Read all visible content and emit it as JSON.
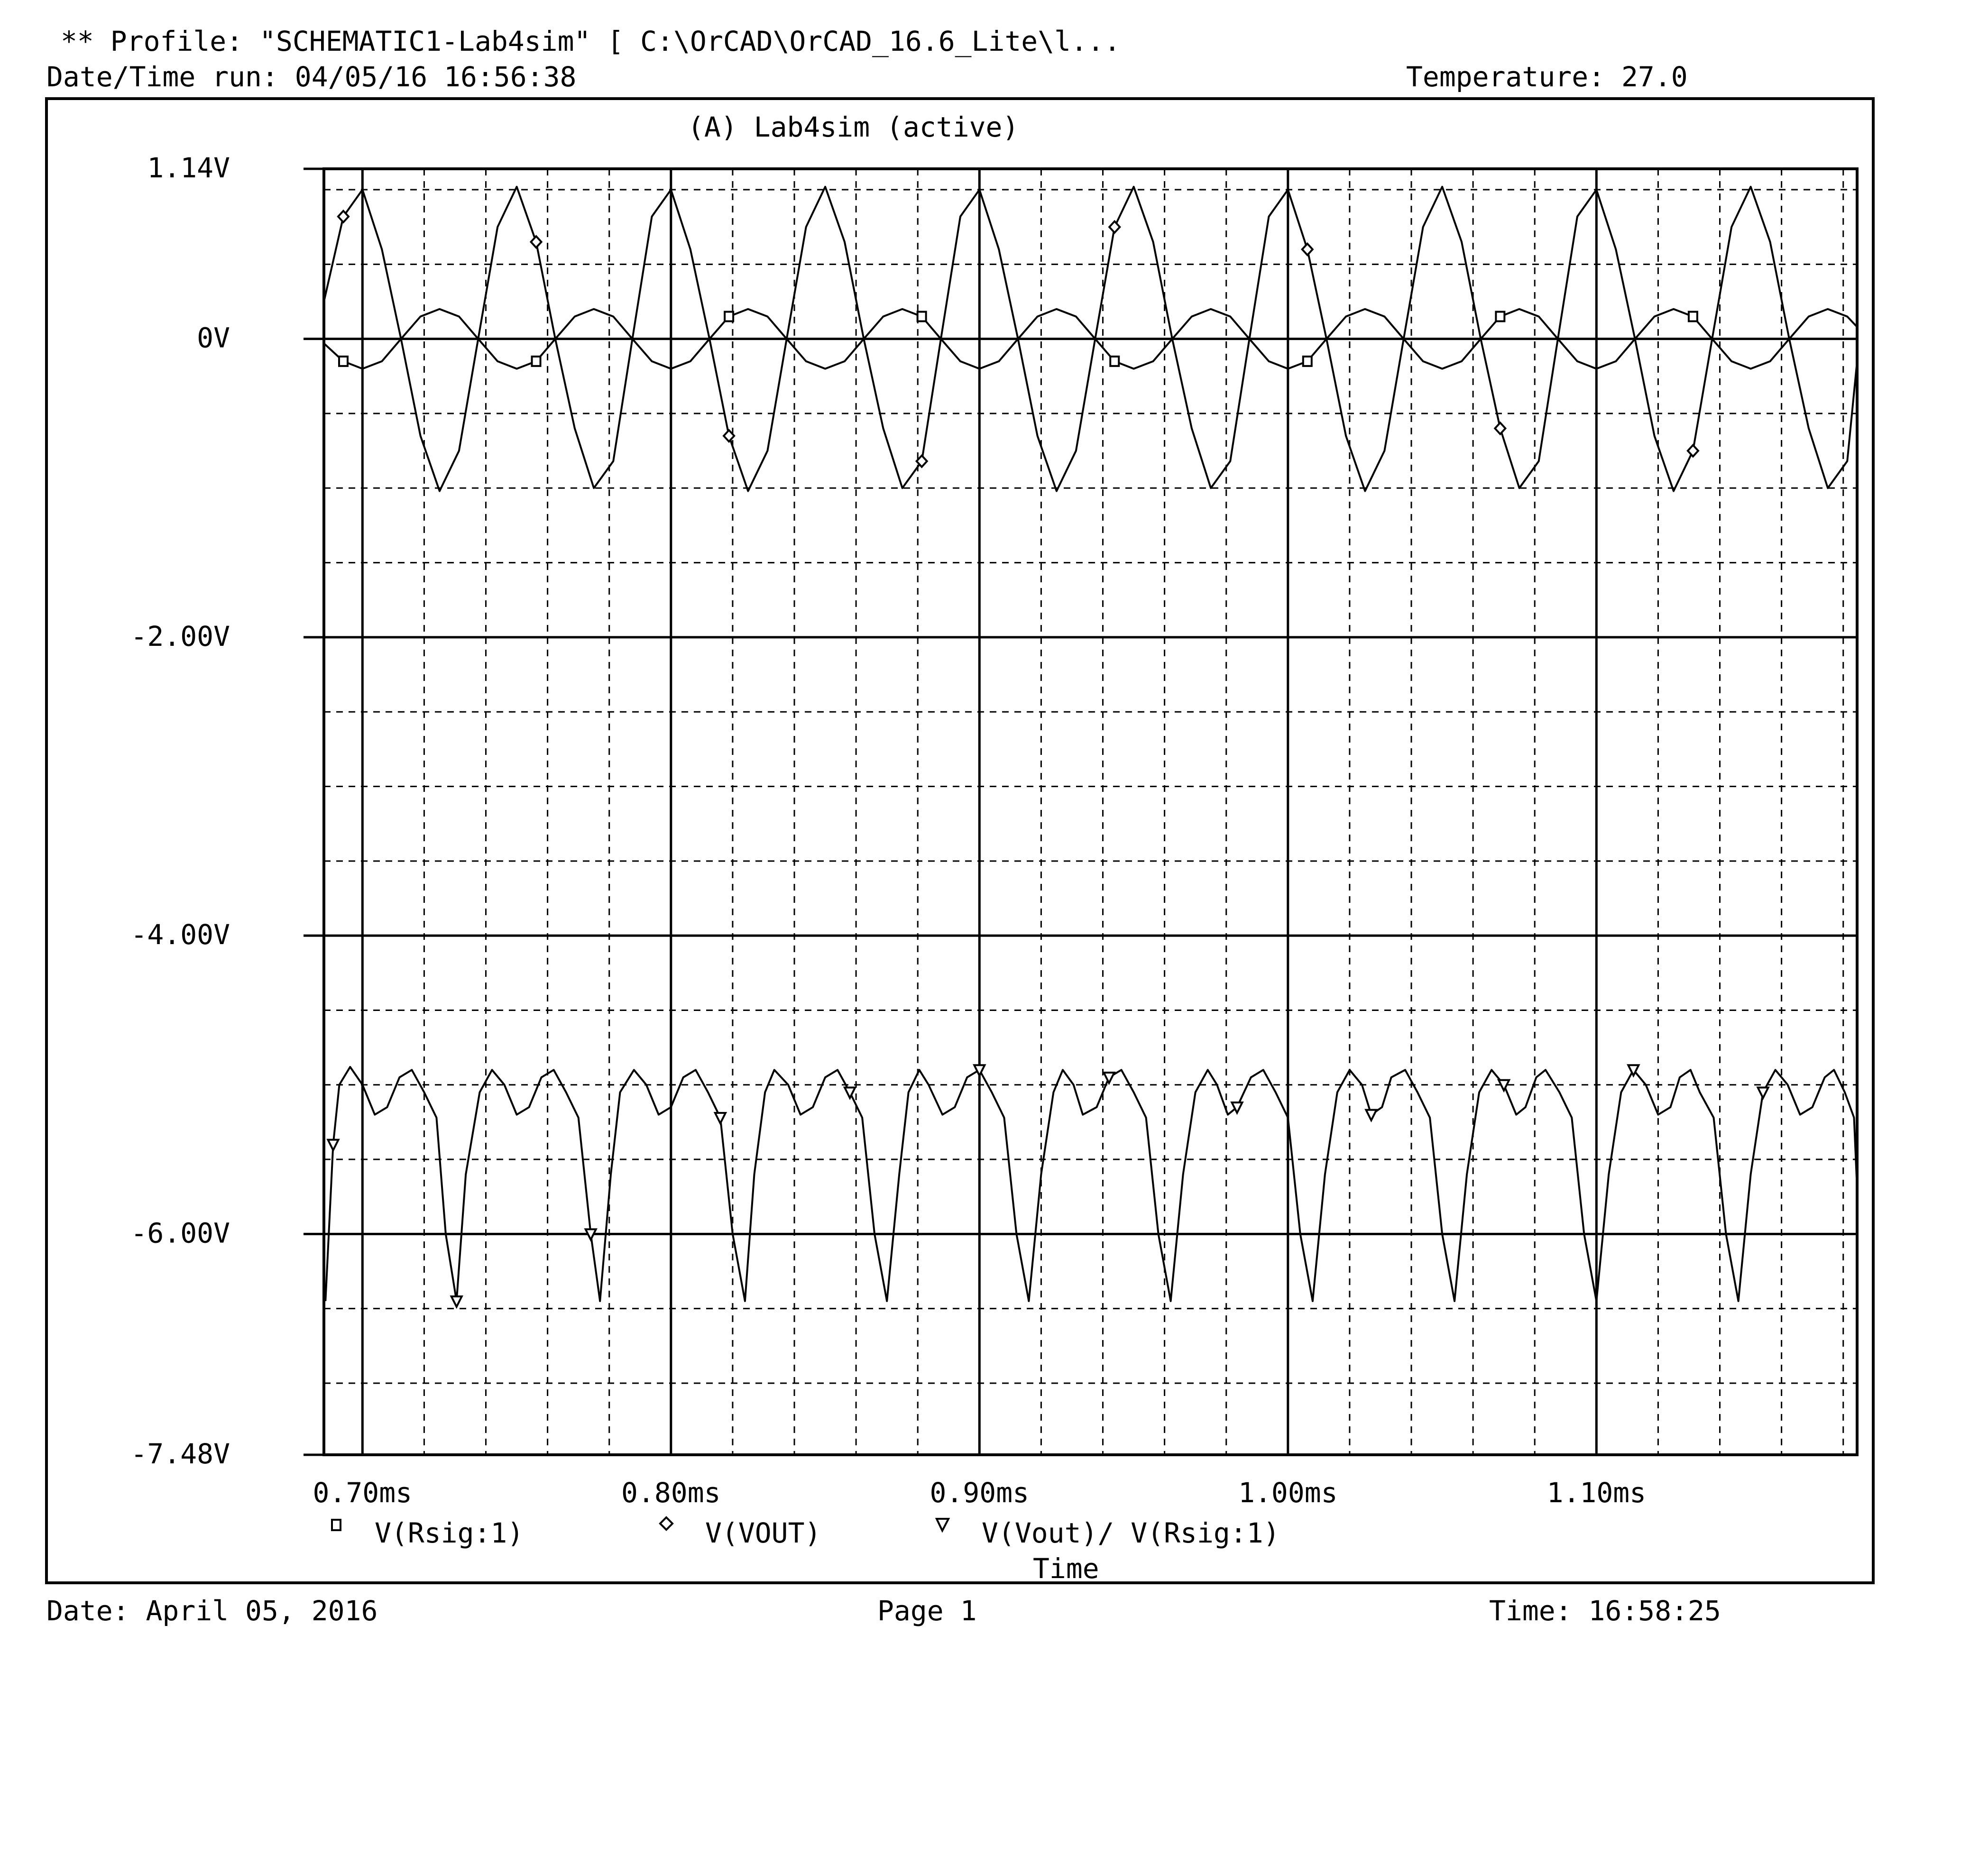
{
  "header": {
    "profile": "** Profile: \"SCHEMATIC1-Lab4sim\"  [ C:\\OrCAD\\OrCAD_16.6_Lite\\l...",
    "datetime_run": "Date/Time run: 04/05/16 16:56:38",
    "temperature": "Temperature: 27.0"
  },
  "footer": {
    "date": "Date: April 05, 2016",
    "page": "Page 1",
    "time": "Time: 16:58:25"
  },
  "chart_data": {
    "type": "line",
    "title": "(A) Lab4sim (active)",
    "xlabel": "Time",
    "ylabel": "",
    "x_unit": "ms",
    "xlim": [
      0.6875,
      1.1845
    ],
    "ylim": [
      -7.48,
      1.14
    ],
    "grid": true,
    "legend_position": "bottom",
    "x_ticks": [
      {
        "value": 0.7,
        "label": "0.70ms"
      },
      {
        "value": 0.8,
        "label": "0.80ms"
      },
      {
        "value": 0.9,
        "label": "0.90ms"
      },
      {
        "value": 1.0,
        "label": "1.00ms"
      },
      {
        "value": 1.1,
        "label": "1.10ms"
      }
    ],
    "y_ticks": [
      {
        "value": 1.14,
        "label": "1.14V"
      },
      {
        "value": 0,
        "label": "0V"
      },
      {
        "value": -2.0,
        "label": "-2.00V"
      },
      {
        "value": -4.0,
        "label": "-4.00V"
      },
      {
        "value": -6.0,
        "label": "-6.00V"
      },
      {
        "value": -7.48,
        "label": "-7.48V"
      }
    ],
    "series": [
      {
        "name": "V(Rsig:1)",
        "marker": "square",
        "color": "#000000",
        "x": [
          0.6875,
          0.6938,
          0.7,
          0.7063,
          0.7125,
          0.7188,
          0.725,
          0.7313,
          0.7375,
          0.7438,
          0.75,
          0.7563,
          0.7625,
          0.7688,
          0.775,
          0.7813,
          0.7875,
          0.7938,
          0.8,
          0.8063,
          0.8125,
          0.8188,
          0.825,
          0.8313,
          0.8375,
          0.8438,
          0.85,
          0.8563,
          0.8625,
          0.8688,
          0.875,
          0.8813,
          0.8875,
          0.8938,
          0.9,
          0.9063,
          0.9125,
          0.9188,
          0.925,
          0.9313,
          0.9375,
          0.9438,
          0.95,
          0.9563,
          0.9625,
          0.9688,
          0.975,
          0.9813,
          0.9875,
          0.9938,
          1.0,
          1.0063,
          1.0125,
          1.0188,
          1.025,
          1.0313,
          1.0375,
          1.0438,
          1.05,
          1.0563,
          1.0625,
          1.0688,
          1.075,
          1.0813,
          1.0875,
          1.0938,
          1.1,
          1.1063,
          1.1125,
          1.1188,
          1.125,
          1.1313,
          1.1375,
          1.1438,
          1.15,
          1.1563,
          1.1625,
          1.1688,
          1.175,
          1.1813,
          1.1845
        ],
        "y": [
          -0.03,
          -0.15,
          -0.2,
          -0.15,
          0.0,
          0.15,
          0.2,
          0.15,
          0.0,
          -0.15,
          -0.2,
          -0.15,
          0.0,
          0.15,
          0.2,
          0.15,
          0.0,
          -0.15,
          -0.2,
          -0.15,
          0.0,
          0.15,
          0.2,
          0.15,
          0.0,
          -0.15,
          -0.2,
          -0.15,
          0.0,
          0.15,
          0.2,
          0.15,
          0.0,
          -0.15,
          -0.2,
          -0.15,
          0.0,
          0.15,
          0.2,
          0.15,
          0.0,
          -0.15,
          -0.2,
          -0.15,
          0.0,
          0.15,
          0.2,
          0.15,
          0.0,
          -0.15,
          -0.2,
          -0.15,
          0.0,
          0.15,
          0.2,
          0.15,
          0.0,
          -0.15,
          -0.2,
          -0.15,
          0.0,
          0.15,
          0.2,
          0.15,
          0.0,
          -0.15,
          -0.2,
          -0.15,
          0.0,
          0.15,
          0.2,
          0.15,
          0.0,
          -0.15,
          -0.2,
          -0.15,
          0.0,
          0.15,
          0.2,
          0.15,
          0.08
        ]
      },
      {
        "name": "V(VOUT)",
        "marker": "diamond",
        "color": "#000000",
        "x": [
          0.6875,
          0.6938,
          0.7,
          0.7063,
          0.7125,
          0.7188,
          0.725,
          0.7313,
          0.7375,
          0.7438,
          0.75,
          0.7563,
          0.7625,
          0.7688,
          0.775,
          0.7813,
          0.7875,
          0.7938,
          0.8,
          0.8063,
          0.8125,
          0.8188,
          0.825,
          0.8313,
          0.8375,
          0.8438,
          0.85,
          0.8563,
          0.8625,
          0.8688,
          0.875,
          0.8813,
          0.8875,
          0.8938,
          0.9,
          0.9063,
          0.9125,
          0.9188,
          0.925,
          0.9313,
          0.9375,
          0.9438,
          0.95,
          0.9563,
          0.9625,
          0.9688,
          0.975,
          0.9813,
          0.9875,
          0.9938,
          1.0,
          1.0063,
          1.0125,
          1.0188,
          1.025,
          1.0313,
          1.0375,
          1.0438,
          1.05,
          1.0563,
          1.0625,
          1.0688,
          1.075,
          1.0813,
          1.0875,
          1.0938,
          1.1,
          1.1063,
          1.1125,
          1.1188,
          1.125,
          1.1313,
          1.1375,
          1.1438,
          1.15,
          1.1563,
          1.1625,
          1.1688,
          1.175,
          1.1813,
          1.1845
        ],
        "y": [
          0.25,
          0.82,
          1.0,
          0.6,
          0.0,
          -0.65,
          -1.02,
          -0.75,
          0.0,
          0.75,
          1.02,
          0.65,
          0.0,
          -0.6,
          -1.0,
          -0.82,
          0.0,
          0.82,
          1.0,
          0.6,
          0.0,
          -0.65,
          -1.02,
          -0.75,
          0.0,
          0.75,
          1.02,
          0.65,
          0.0,
          -0.6,
          -1.0,
          -0.82,
          0.0,
          0.82,
          1.0,
          0.6,
          0.0,
          -0.65,
          -1.02,
          -0.75,
          0.0,
          0.75,
          1.02,
          0.65,
          0.0,
          -0.6,
          -1.0,
          -0.82,
          0.0,
          0.82,
          1.0,
          0.6,
          0.0,
          -0.65,
          -1.02,
          -0.75,
          0.0,
          0.75,
          1.02,
          0.65,
          0.0,
          -0.6,
          -1.0,
          -0.82,
          0.0,
          0.82,
          1.0,
          0.6,
          0.0,
          -0.65,
          -1.02,
          -0.75,
          0.0,
          0.75,
          1.02,
          0.65,
          0.0,
          -0.6,
          -1.0,
          -0.82,
          -0.15
        ]
      },
      {
        "name": "V(Vout)/ V(Rsig:1)",
        "marker": "triangle-down",
        "color": "#000000",
        "x": [
          0.688,
          0.6905,
          0.6925,
          0.696,
          0.7,
          0.704,
          0.708,
          0.712,
          0.716,
          0.72,
          0.724,
          0.727,
          0.7305,
          0.7335,
          0.738,
          0.742,
          0.746,
          0.75,
          0.754,
          0.758,
          0.762,
          0.766,
          0.77,
          0.774,
          0.777,
          0.7805,
          0.7835,
          0.788,
          0.792,
          0.796,
          0.8,
          0.804,
          0.808,
          0.812,
          0.816,
          0.82,
          0.824,
          0.827,
          0.8305,
          0.8335,
          0.838,
          0.842,
          0.846,
          0.85,
          0.854,
          0.858,
          0.862,
          0.866,
          0.87,
          0.874,
          0.877,
          0.8805,
          0.8835,
          0.888,
          0.892,
          0.896,
          0.9,
          0.904,
          0.908,
          0.912,
          0.916,
          0.92,
          0.924,
          0.927,
          0.9305,
          0.9335,
          0.938,
          0.942,
          0.946,
          0.95,
          0.954,
          0.958,
          0.962,
          0.966,
          0.97,
          0.974,
          0.977,
          0.9805,
          0.9835,
          0.988,
          0.992,
          0.996,
          1.0,
          1.004,
          1.008,
          1.012,
          1.016,
          1.02,
          1.024,
          1.027,
          1.0305,
          1.0335,
          1.038,
          1.042,
          1.046,
          1.05,
          1.054,
          1.058,
          1.062,
          1.066,
          1.07,
          1.074,
          1.077,
          1.0805,
          1.0835,
          1.088,
          1.092,
          1.096,
          1.1,
          1.104,
          1.108,
          1.112,
          1.116,
          1.12,
          1.124,
          1.127,
          1.1305,
          1.1335,
          1.138,
          1.142,
          1.146,
          1.15,
          1.154,
          1.158,
          1.162,
          1.166,
          1.17,
          1.174,
          1.177,
          1.1805,
          1.1835,
          1.1845
        ],
        "y": [
          -6.45,
          -5.4,
          -5.0,
          -4.88,
          -5.0,
          -5.2,
          -5.15,
          -4.95,
          -4.9,
          -5.05,
          -5.22,
          -6.0,
          -6.45,
          -5.6,
          -5.05,
          -4.9,
          -5.0,
          -5.2,
          -5.15,
          -4.95,
          -4.9,
          -5.05,
          -5.22,
          -6.0,
          -6.45,
          -5.6,
          -5.05,
          -4.9,
          -5.0,
          -5.2,
          -5.15,
          -4.95,
          -4.9,
          -5.05,
          -5.22,
          -6.0,
          -6.45,
          -5.6,
          -5.05,
          -4.9,
          -5.0,
          -5.2,
          -5.15,
          -4.95,
          -4.9,
          -5.05,
          -5.22,
          -6.0,
          -6.45,
          -5.6,
          -5.05,
          -4.9,
          -5.0,
          -5.2,
          -5.15,
          -4.95,
          -4.9,
          -5.05,
          -5.22,
          -6.0,
          -6.45,
          -5.6,
          -5.05,
          -4.9,
          -5.0,
          -5.2,
          -5.15,
          -4.95,
          -4.9,
          -5.05,
          -5.22,
          -6.0,
          -6.45,
          -5.6,
          -5.05,
          -4.9,
          -5.0,
          -5.2,
          -5.15,
          -4.95,
          -4.9,
          -5.05,
          -5.22,
          -6.0,
          -6.45,
          -5.6,
          -5.05,
          -4.9,
          -5.0,
          -5.2,
          -5.15,
          -4.95,
          -4.9,
          -5.05,
          -5.22,
          -6.0,
          -6.45,
          -5.6,
          -5.05,
          -4.9,
          -5.0,
          -5.2,
          -5.15,
          -4.95,
          -4.9,
          -5.05,
          -5.22,
          -6.0,
          -6.45,
          -5.6,
          -5.05,
          -4.9,
          -5.0,
          -5.2,
          -5.15,
          -4.95,
          -4.9,
          -5.05,
          -5.22,
          -6.0,
          -6.45,
          -5.6,
          -5.05,
          -4.9,
          -5.0,
          -5.2,
          -5.15,
          -4.95,
          -4.9,
          -5.05,
          -5.22,
          -5.7
        ]
      }
    ]
  }
}
